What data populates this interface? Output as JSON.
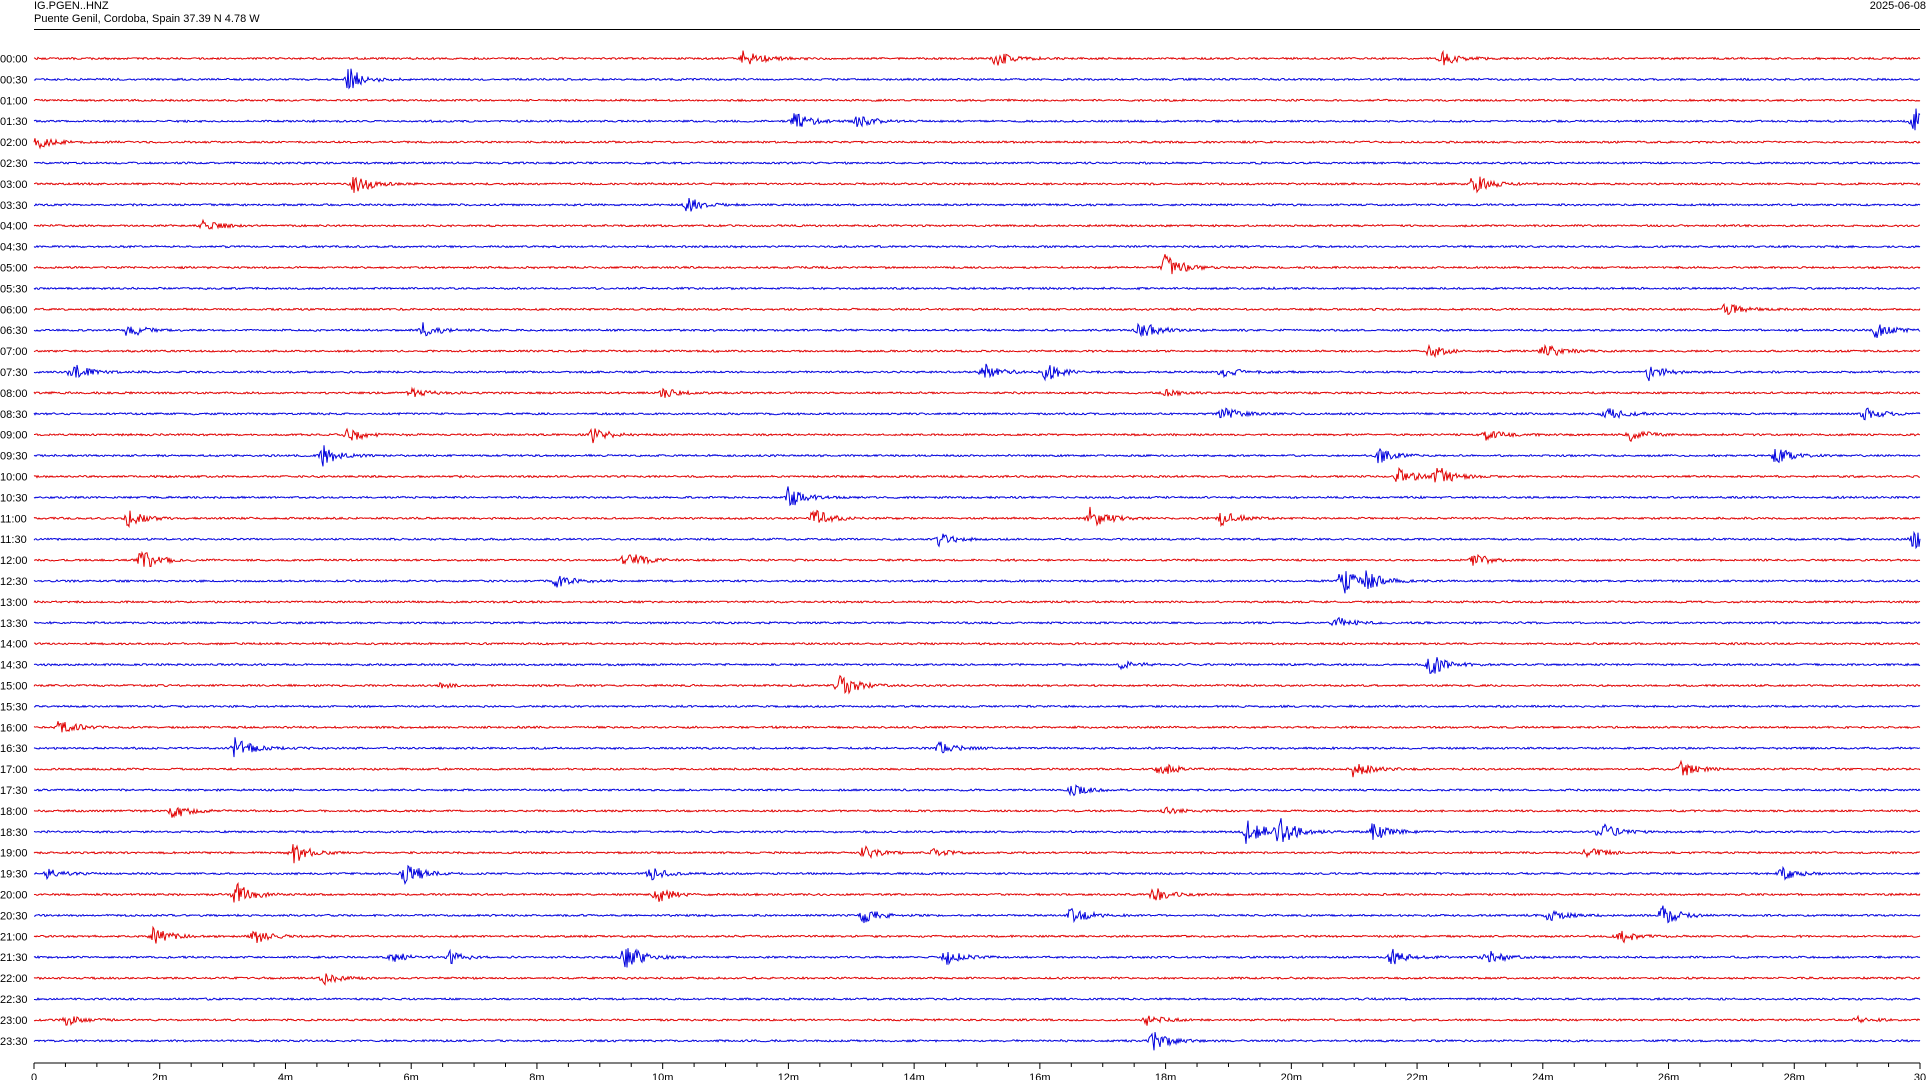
{
  "header": {
    "station": "IG.PGEN..HNZ",
    "location": "Puente Genil, Cordoba, Spain  37.39 N 4.78 W",
    "date": "2025-06-08"
  },
  "chart_data": {
    "type": "line",
    "title": "",
    "xlabel": "",
    "ylabel": "",
    "x_unit": "minutes",
    "x_range": [
      0,
      30
    ],
    "x_ticks": [
      "0",
      "2m",
      "4m",
      "6m",
      "8m",
      "10m",
      "12m",
      "14m",
      "16m",
      "18m",
      "20m",
      "22m",
      "24m",
      "26m",
      "28m",
      "30"
    ],
    "trace_colors": [
      "#e00000",
      "#0000dd"
    ],
    "rows": [
      {
        "label": "00:00",
        "color": "red",
        "events": [
          [
            11.3,
            1.0
          ],
          [
            15.3,
            0.7
          ],
          [
            22.4,
            0.7
          ]
        ]
      },
      {
        "label": "00:30",
        "color": "blue",
        "events": [
          [
            5.0,
            1.1
          ]
        ]
      },
      {
        "label": "01:00",
        "color": "red",
        "events": []
      },
      {
        "label": "01:30",
        "color": "blue",
        "events": [
          [
            12.1,
            0.8
          ],
          [
            13.1,
            0.6
          ],
          [
            29.9,
            1.3
          ]
        ]
      },
      {
        "label": "02:00",
        "color": "red",
        "events": [
          [
            0.05,
            0.6
          ]
        ]
      },
      {
        "label": "02:30",
        "color": "blue",
        "events": []
      },
      {
        "label": "03:00",
        "color": "red",
        "events": [
          [
            5.1,
            1.0
          ],
          [
            22.9,
            0.9
          ]
        ]
      },
      {
        "label": "03:30",
        "color": "blue",
        "events": [
          [
            10.4,
            0.7
          ]
        ]
      },
      {
        "label": "04:00",
        "color": "red",
        "events": [
          [
            2.7,
            0.5
          ]
        ]
      },
      {
        "label": "04:30",
        "color": "blue",
        "events": []
      },
      {
        "label": "05:00",
        "color": "red",
        "events": [
          [
            18.0,
            1.2
          ]
        ]
      },
      {
        "label": "05:30",
        "color": "blue",
        "events": []
      },
      {
        "label": "06:00",
        "color": "red",
        "events": [
          [
            26.9,
            0.6
          ]
        ]
      },
      {
        "label": "06:30",
        "color": "blue",
        "events": [
          [
            1.5,
            0.7
          ],
          [
            6.2,
            0.7
          ],
          [
            17.6,
            0.9
          ],
          [
            29.3,
            0.7
          ]
        ]
      },
      {
        "label": "07:00",
        "color": "red",
        "events": [
          [
            22.2,
            0.6
          ],
          [
            24.0,
            0.8
          ]
        ]
      },
      {
        "label": "07:30",
        "color": "blue",
        "events": [
          [
            0.6,
            0.8
          ],
          [
            15.1,
            0.8
          ],
          [
            16.1,
            0.8
          ],
          [
            18.9,
            0.6
          ],
          [
            25.7,
            0.8
          ]
        ]
      },
      {
        "label": "08:00",
        "color": "red",
        "events": [
          [
            6.0,
            0.4
          ],
          [
            10.0,
            0.5
          ],
          [
            18.0,
            0.3
          ]
        ]
      },
      {
        "label": "08:30",
        "color": "blue",
        "events": [
          [
            18.9,
            0.7
          ],
          [
            25.0,
            0.7
          ],
          [
            29.1,
            0.6
          ]
        ]
      },
      {
        "label": "09:00",
        "color": "red",
        "events": [
          [
            5.0,
            0.7
          ],
          [
            8.9,
            0.8
          ],
          [
            23.1,
            0.6
          ],
          [
            25.4,
            0.6
          ]
        ]
      },
      {
        "label": "09:30",
        "color": "blue",
        "events": [
          [
            4.6,
            0.9
          ],
          [
            21.4,
            0.8
          ],
          [
            27.7,
            0.8
          ]
        ]
      },
      {
        "label": "10:00",
        "color": "red",
        "events": [
          [
            21.7,
            0.8
          ],
          [
            22.3,
            1.0
          ]
        ]
      },
      {
        "label": "10:30",
        "color": "blue",
        "events": [
          [
            12.0,
            1.0
          ]
        ]
      },
      {
        "label": "11:00",
        "color": "red",
        "events": [
          [
            1.5,
            0.7
          ],
          [
            12.4,
            0.9
          ],
          [
            16.8,
            1.1
          ],
          [
            18.9,
            0.7
          ]
        ]
      },
      {
        "label": "11:30",
        "color": "blue",
        "events": [
          [
            14.4,
            0.6
          ],
          [
            29.9,
            0.9
          ]
        ]
      },
      {
        "label": "12:00",
        "color": "red",
        "events": [
          [
            1.7,
            1.1
          ],
          [
            9.4,
            1.0
          ],
          [
            22.9,
            0.6
          ]
        ]
      },
      {
        "label": "12:30",
        "color": "blue",
        "events": [
          [
            8.3,
            0.6
          ],
          [
            20.8,
            1.3
          ],
          [
            21.2,
            0.7
          ]
        ]
      },
      {
        "label": "13:00",
        "color": "red",
        "events": []
      },
      {
        "label": "13:30",
        "color": "blue",
        "events": [
          [
            20.7,
            0.6
          ]
        ]
      },
      {
        "label": "14:00",
        "color": "red",
        "events": []
      },
      {
        "label": "14:30",
        "color": "blue",
        "events": [
          [
            17.3,
            0.4
          ],
          [
            22.2,
            1.2
          ]
        ]
      },
      {
        "label": "15:00",
        "color": "red",
        "events": [
          [
            6.4,
            0.3
          ],
          [
            12.8,
            1.3
          ]
        ]
      },
      {
        "label": "15:30",
        "color": "blue",
        "events": []
      },
      {
        "label": "16:00",
        "color": "red",
        "events": [
          [
            0.4,
            0.8
          ]
        ]
      },
      {
        "label": "16:30",
        "color": "blue",
        "events": [
          [
            3.2,
            1.1
          ],
          [
            14.4,
            0.6
          ]
        ]
      },
      {
        "label": "17:00",
        "color": "red",
        "events": [
          [
            17.9,
            0.7
          ],
          [
            21.0,
            0.8
          ],
          [
            26.2,
            0.7
          ]
        ]
      },
      {
        "label": "17:30",
        "color": "blue",
        "events": [
          [
            16.5,
            0.5
          ]
        ]
      },
      {
        "label": "18:00",
        "color": "red",
        "events": [
          [
            2.2,
            0.8
          ],
          [
            18.0,
            0.3
          ]
        ]
      },
      {
        "label": "18:30",
        "color": "blue",
        "events": [
          [
            19.3,
            1.3
          ],
          [
            19.8,
            1.3
          ],
          [
            21.3,
            0.8
          ],
          [
            24.9,
            1.0
          ]
        ]
      },
      {
        "label": "19:00",
        "color": "red",
        "events": [
          [
            4.1,
            1.1
          ],
          [
            13.2,
            0.6
          ],
          [
            14.3,
            0.4
          ],
          [
            24.7,
            0.6
          ]
        ]
      },
      {
        "label": "19:30",
        "color": "blue",
        "events": [
          [
            0.2,
            0.6
          ],
          [
            5.9,
            1.2
          ],
          [
            9.8,
            0.6
          ],
          [
            27.8,
            0.6
          ]
        ]
      },
      {
        "label": "20:00",
        "color": "red",
        "events": [
          [
            3.2,
            1.2
          ],
          [
            9.9,
            0.8
          ],
          [
            17.8,
            0.7
          ]
        ]
      },
      {
        "label": "20:30",
        "color": "blue",
        "events": [
          [
            13.2,
            0.7
          ],
          [
            16.5,
            0.8
          ],
          [
            24.1,
            0.6
          ],
          [
            25.9,
            1.0
          ]
        ]
      },
      {
        "label": "21:00",
        "color": "red",
        "events": [
          [
            1.9,
            0.8
          ],
          [
            3.5,
            0.7
          ],
          [
            25.2,
            0.7
          ]
        ]
      },
      {
        "label": "21:30",
        "color": "blue",
        "events": [
          [
            5.7,
            0.5
          ],
          [
            6.6,
            0.6
          ],
          [
            9.4,
            1.3
          ],
          [
            14.5,
            0.7
          ],
          [
            21.6,
            0.8
          ],
          [
            23.1,
            0.7
          ]
        ]
      },
      {
        "label": "22:00",
        "color": "red",
        "events": [
          [
            4.6,
            0.6
          ]
        ]
      },
      {
        "label": "22:30",
        "color": "blue",
        "events": []
      },
      {
        "label": "23:00",
        "color": "red",
        "events": [
          [
            0.5,
            0.5
          ],
          [
            17.7,
            0.5
          ],
          [
            29.0,
            0.3
          ]
        ]
      },
      {
        "label": "23:30",
        "color": "blue",
        "events": [
          [
            17.8,
            1.0
          ]
        ]
      }
    ]
  }
}
